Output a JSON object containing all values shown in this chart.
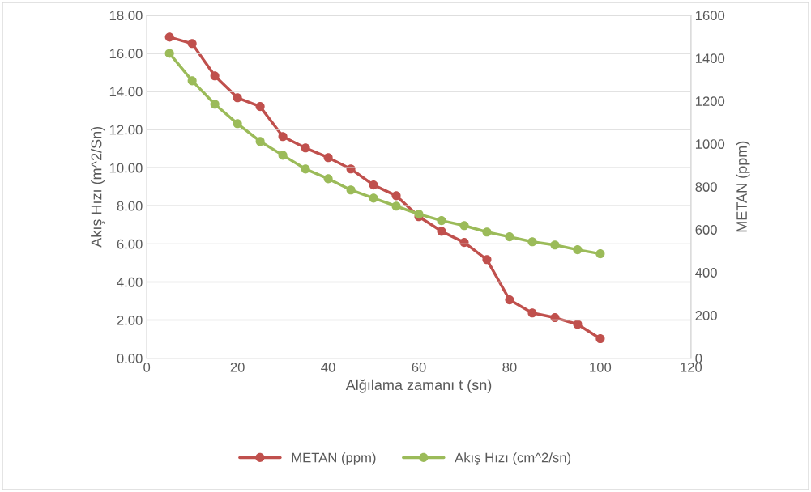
{
  "chart_data": {
    "type": "line",
    "xlabel": "Alğılama zamanı t (sn)",
    "ylabel": "Akış Hızı (m^2/Sn)",
    "y2label": "METAN (ppm)",
    "x": [
      5,
      10,
      15,
      20,
      25,
      30,
      35,
      40,
      45,
      50,
      55,
      60,
      65,
      70,
      75,
      80,
      85,
      90,
      95,
      100
    ],
    "series": [
      {
        "name": "METAN (ppm)",
        "color": "#c0504d",
        "axis": "y2",
        "values": [
          1498,
          1468,
          1317,
          1215,
          1174,
          1034,
          981,
          936,
          883,
          808,
          758,
          660,
          592,
          540,
          460,
          272,
          211,
          189,
          158,
          91
        ]
      },
      {
        "name": "Akış Hızı (cm^2/sn)",
        "color": "#9bbb59",
        "values": [
          16.0,
          14.56,
          13.33,
          12.31,
          11.38,
          10.65,
          9.93,
          9.42,
          8.83,
          8.4,
          7.98,
          7.56,
          7.22,
          6.96,
          6.62,
          6.37,
          6.11,
          5.94,
          5.69,
          5.48
        ]
      }
    ],
    "xlim": [
      0,
      120
    ],
    "xticks": [
      0,
      20,
      40,
      60,
      80,
      100,
      120
    ],
    "ylim": [
      0,
      18
    ],
    "yticks": [
      {
        "value": 0,
        "label": "0.00"
      },
      {
        "value": 2,
        "label": "2.00"
      },
      {
        "value": 4,
        "label": "4.00"
      },
      {
        "value": 6,
        "label": "6.00"
      },
      {
        "value": 8,
        "label": "8.00"
      },
      {
        "value": 10,
        "label": "10.00"
      },
      {
        "value": 12,
        "label": "12.00"
      },
      {
        "value": 14,
        "label": "14.00"
      },
      {
        "value": 16,
        "label": "16.00"
      },
      {
        "value": 18,
        "label": "18.00"
      }
    ],
    "y2lim": [
      0,
      1600
    ],
    "y2ticks": [
      0,
      200,
      400,
      600,
      800,
      1000,
      1200,
      1400,
      1600
    ],
    "grid": "y",
    "legend": "bottom",
    "marker": "circle",
    "line_style": "solid"
  }
}
